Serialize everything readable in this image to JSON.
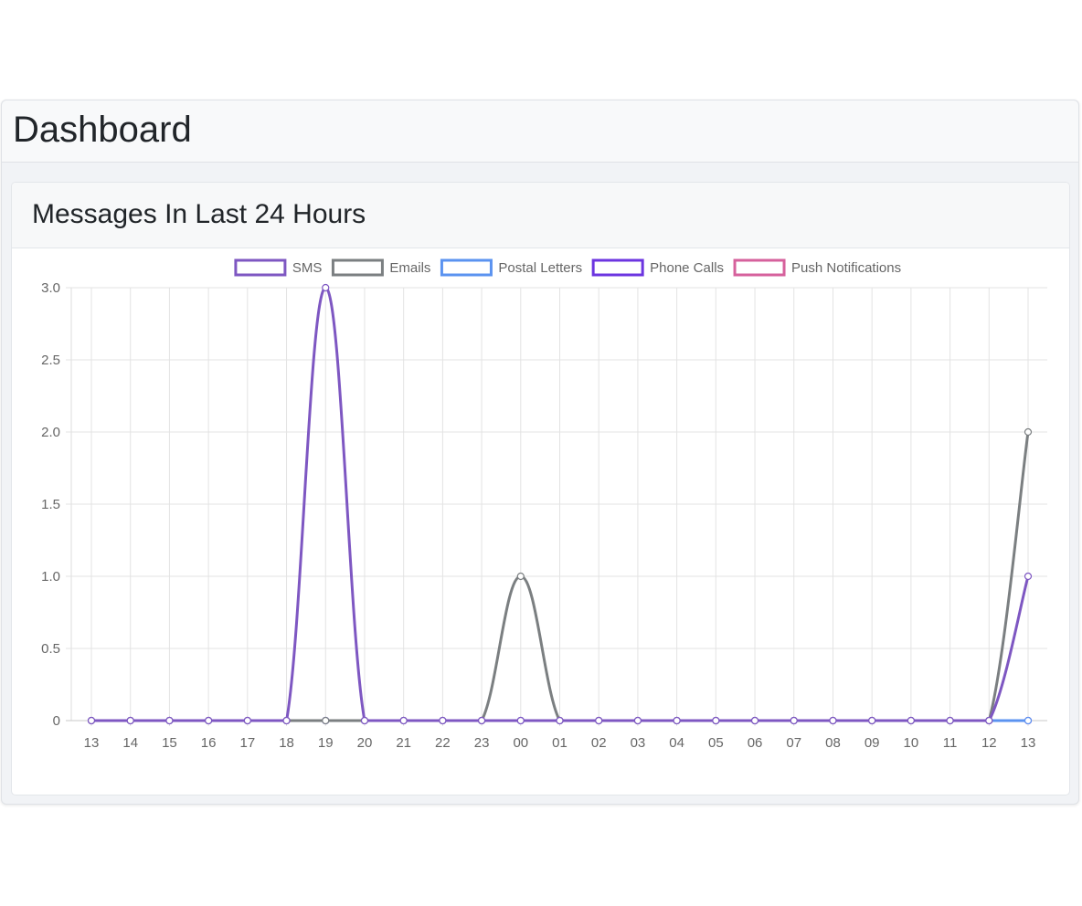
{
  "page": {
    "title": "Dashboard"
  },
  "card": {
    "title": "Messages In Last 24 Hours"
  },
  "chart_data": {
    "type": "line",
    "title": "",
    "xlabel": "",
    "ylabel": "",
    "categories": [
      "13",
      "14",
      "15",
      "16",
      "17",
      "18",
      "19",
      "20",
      "21",
      "22",
      "23",
      "00",
      "01",
      "02",
      "03",
      "04",
      "05",
      "06",
      "07",
      "08",
      "09",
      "10",
      "11",
      "12",
      "13"
    ],
    "ylim": [
      0,
      3
    ],
    "yticks": [
      "0",
      "0.5",
      "1.0",
      "1.5",
      "2.0",
      "2.5",
      "3.0"
    ],
    "grid": true,
    "legend_position": "top",
    "series": [
      {
        "name": "SMS",
        "color": "#7e57c2",
        "values": [
          0,
          0,
          0,
          0,
          0,
          0,
          3,
          0,
          0,
          0,
          0,
          0,
          0,
          0,
          0,
          0,
          0,
          0,
          0,
          0,
          0,
          0,
          0,
          0,
          1
        ]
      },
      {
        "name": "Emails",
        "color": "#7b7f81",
        "values": [
          0,
          0,
          0,
          0,
          0,
          0,
          0,
          0,
          0,
          0,
          0,
          1,
          0,
          0,
          0,
          0,
          0,
          0,
          0,
          0,
          0,
          0,
          0,
          0,
          2
        ]
      },
      {
        "name": "Postal Letters",
        "color": "#5b93f0",
        "values": [
          0,
          0,
          0,
          0,
          0,
          0,
          0,
          0,
          0,
          0,
          0,
          0,
          0,
          0,
          0,
          0,
          0,
          0,
          0,
          0,
          0,
          0,
          0,
          0,
          0
        ]
      },
      {
        "name": "Phone Calls",
        "color": "#6c35e0",
        "values": [
          0,
          0,
          0,
          0,
          0,
          0,
          0,
          0,
          0,
          0,
          0,
          0,
          0,
          0,
          0,
          0,
          0,
          0,
          0,
          0,
          0,
          0,
          0,
          0,
          0
        ]
      },
      {
        "name": "Push Notifications",
        "color": "#d6619c",
        "values": [
          0,
          0,
          0,
          0,
          0,
          0,
          0,
          0,
          0,
          0,
          0,
          0,
          0,
          0,
          0,
          0,
          0,
          0,
          0,
          0,
          0,
          0,
          0,
          0,
          0
        ]
      }
    ]
  }
}
